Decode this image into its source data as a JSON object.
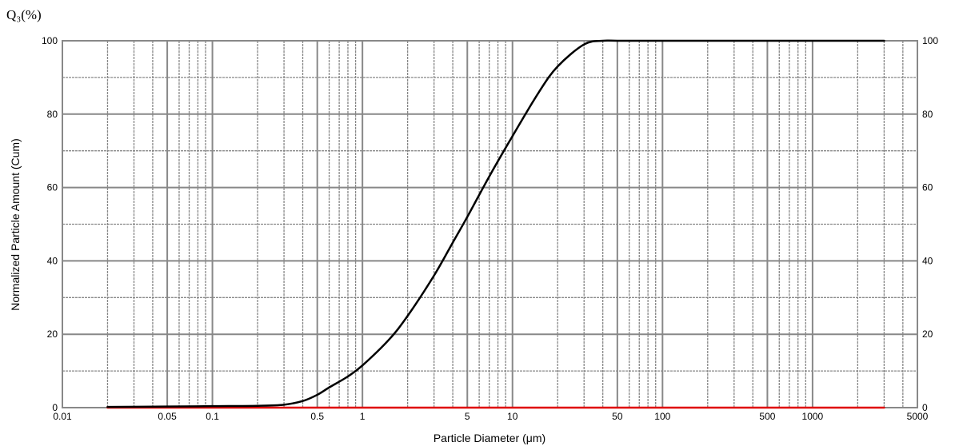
{
  "chart_data": {
    "type": "line",
    "corner_label": "Q₃(%)",
    "xlabel": "Particle Diameter (μm)",
    "ylabel": "Normalized Particle Amount (Cum)",
    "x_scale": "log",
    "xlim": [
      0.01,
      5000
    ],
    "ylim": [
      0,
      100
    ],
    "grid": true,
    "x_tick_values": [
      0.01,
      0.05,
      0.1,
      0.5,
      1,
      5,
      10,
      50,
      100,
      500,
      1000,
      5000
    ],
    "x_tick_labels": [
      "0.01",
      "0.05",
      "0.1",
      "0.5",
      "1",
      "5",
      "10",
      "50",
      "100",
      "500",
      "1000",
      "5000"
    ],
    "y_tick_values": [
      0,
      20,
      40,
      60,
      80,
      100
    ],
    "y_tick_labels": [
      "0",
      "20",
      "40",
      "60",
      "80",
      "100"
    ],
    "colors": {
      "grid": "#888888",
      "frame": "#888888",
      "cumulative": "#000000",
      "frequency": "#e00000"
    },
    "series": [
      {
        "color": "#000000",
        "x": [
          0.02,
          0.05,
          0.1,
          0.2,
          0.3,
          0.4,
          0.5,
          0.6,
          0.8,
          1,
          1.5,
          2,
          3,
          4,
          5,
          7,
          10,
          15,
          20,
          30,
          40,
          50,
          100,
          500,
          1000,
          3000
        ],
        "y": [
          0.2,
          0.3,
          0.4,
          0.5,
          0.8,
          1.8,
          3.5,
          5.5,
          8.5,
          11.5,
          18.5,
          25,
          36,
          45,
          52,
          63,
          74,
          86,
          93,
          99,
          100,
          100,
          100,
          100,
          100,
          100
        ]
      },
      {
        "color": "#e00000",
        "x": [
          0.02,
          3000
        ],
        "y": [
          0,
          0
        ]
      }
    ]
  }
}
